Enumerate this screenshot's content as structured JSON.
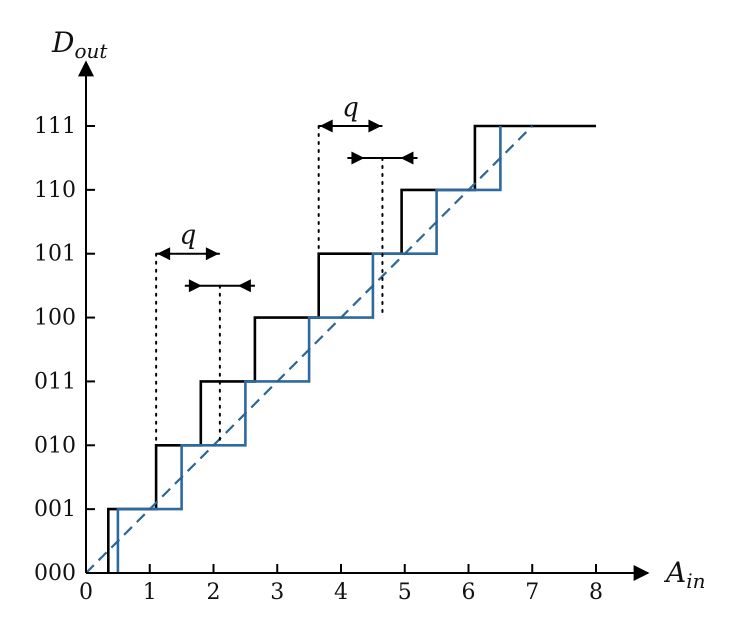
{
  "chart_data": {
    "type": "line",
    "title": "",
    "xlabel": {
      "main": "A",
      "sub": "in"
    },
    "ylabel": {
      "main": "D",
      "sub": "out"
    },
    "xlim": [
      0,
      8
    ],
    "ylim": [
      0,
      7
    ],
    "grid": false,
    "x_ticks": [
      "0",
      "1",
      "2",
      "3",
      "4",
      "5",
      "6",
      "7",
      "8"
    ],
    "y_ticks": [
      "000",
      "001",
      "010",
      "011",
      "100",
      "101",
      "110",
      "111"
    ],
    "series": [
      {
        "color": "#000000",
        "style": "step",
        "points": [
          [
            0.35,
            0
          ],
          [
            0.35,
            1
          ],
          [
            1.1,
            1
          ],
          [
            1.1,
            2
          ],
          [
            1.8,
            2
          ],
          [
            1.8,
            3
          ],
          [
            2.65,
            3
          ],
          [
            2.65,
            4
          ],
          [
            3.65,
            4
          ],
          [
            3.65,
            5
          ],
          [
            4.95,
            5
          ],
          [
            4.95,
            6
          ],
          [
            6.1,
            6
          ],
          [
            6.1,
            7
          ],
          [
            8.0,
            7
          ]
        ]
      },
      {
        "color": "#2c6a9f",
        "style": "step",
        "points": [
          [
            0.5,
            0
          ],
          [
            0.5,
            1
          ],
          [
            1.5,
            1
          ],
          [
            1.5,
            2
          ],
          [
            2.5,
            2
          ],
          [
            2.5,
            3
          ],
          [
            3.5,
            3
          ],
          [
            3.5,
            4
          ],
          [
            4.5,
            4
          ],
          [
            4.5,
            5
          ],
          [
            5.5,
            5
          ],
          [
            5.5,
            6
          ],
          [
            6.5,
            6
          ],
          [
            6.5,
            7
          ]
        ]
      },
      {
        "color": "#000000",
        "style": "dashed",
        "points": [
          [
            0,
            0
          ],
          [
            7.0,
            7
          ]
        ]
      },
      {
        "color": "#2c6a9f",
        "style": "dashed",
        "points": [
          [
            0,
            0
          ],
          [
            7.0,
            7
          ]
        ]
      }
    ],
    "annotations": [
      {
        "label": "q",
        "from": 1.1,
        "to": 2.1,
        "y": 5.0,
        "drop_lines": [
          1.1,
          2.1
        ]
      },
      {
        "label": "q",
        "from": 3.65,
        "to": 4.65,
        "y": 7.0,
        "drop_lines": [
          3.65,
          4.65
        ]
      }
    ]
  }
}
